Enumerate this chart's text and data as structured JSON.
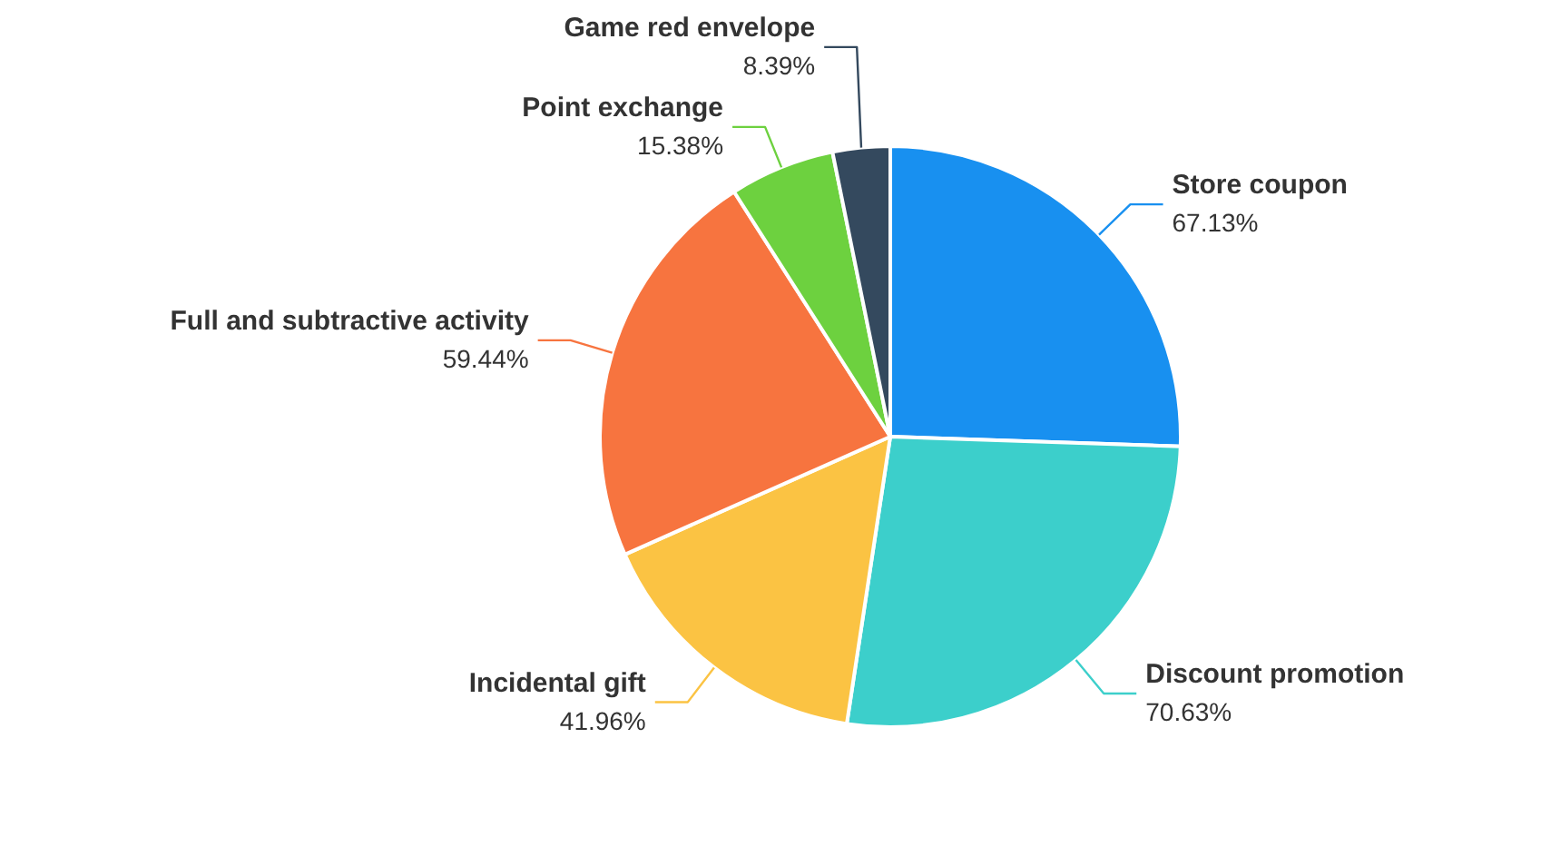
{
  "chart_data": {
    "type": "pie",
    "categories": [
      "Store coupon",
      "Discount promotion",
      "Incidental gift",
      "Full and subtractive activity",
      "Point exchange",
      "Game red envelope"
    ],
    "values": [
      67.13,
      70.63,
      41.96,
      59.44,
      15.38,
      8.39
    ],
    "value_labels": [
      "67.13%",
      "70.63%",
      "41.96%",
      "59.44%",
      "15.38%",
      "8.39%"
    ],
    "colors": [
      "#1890f0",
      "#3ccfcb",
      "#fbc343",
      "#f7743f",
      "#6dd13f",
      "#34495e"
    ]
  }
}
